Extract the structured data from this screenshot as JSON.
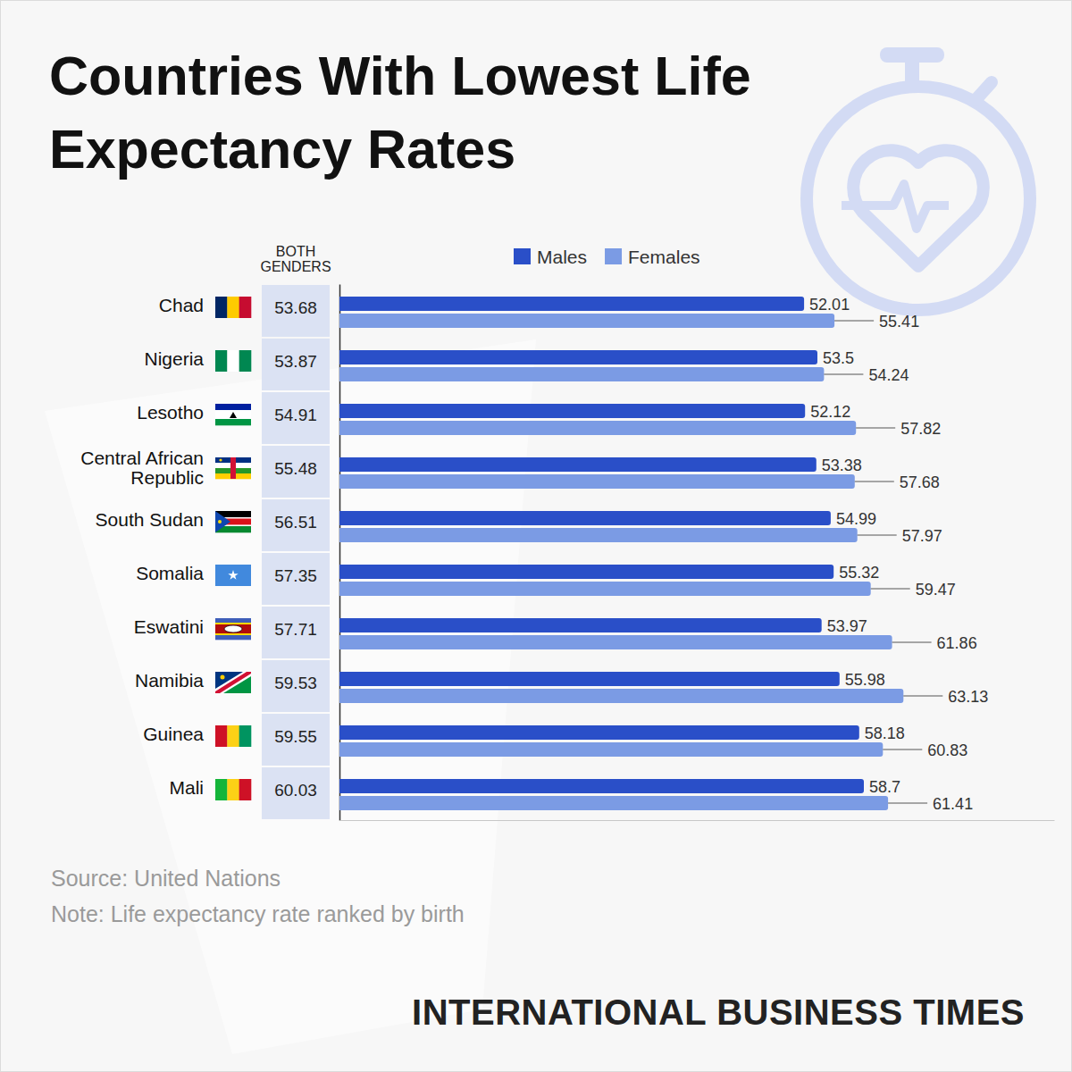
{
  "chart_data": {
    "type": "bar",
    "orientation": "horizontal",
    "title": "Countries With Lowest Life Expectancy Rates",
    "categories": [
      "Chad",
      "Nigeria",
      "Lesotho",
      "Central African Republic",
      "South Sudan",
      "Somalia",
      "Eswatini",
      "Namibia",
      "Guinea",
      "Mali"
    ],
    "column": {
      "title": "BOTH GENDERS",
      "values": [
        53.68,
        53.87,
        54.91,
        55.48,
        56.51,
        57.35,
        57.71,
        59.53,
        59.55,
        60.03
      ]
    },
    "series": [
      {
        "name": "Males",
        "color": "#2a4fc8",
        "values": [
          52.01,
          53.5,
          52.12,
          53.38,
          54.99,
          55.32,
          53.97,
          55.98,
          58.18,
          58.7
        ]
      },
      {
        "name": "Females",
        "color": "#7b9be4",
        "values": [
          55.41,
          54.24,
          57.82,
          57.68,
          57.97,
          59.47,
          61.86,
          63.13,
          60.83,
          61.41
        ]
      }
    ],
    "xlim": [
      0,
      80
    ],
    "tick_labels": false,
    "legend": "top",
    "data_labels": true,
    "grid": false,
    "source": "Source: United Nations",
    "note": "Note: Life expectancy rate ranked by birth",
    "brand": "INTERNATIONAL BUSINESS TIMES"
  }
}
